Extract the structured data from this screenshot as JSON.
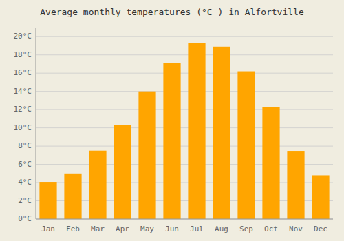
{
  "chart_data": {
    "type": "bar",
    "title": "Average monthly temperatures (°C ) in Alfortville",
    "categories": [
      "Jan",
      "Feb",
      "Mar",
      "Apr",
      "May",
      "Jun",
      "Jul",
      "Aug",
      "Sep",
      "Oct",
      "Nov",
      "Dec"
    ],
    "values": [
      4.0,
      5.0,
      7.5,
      10.3,
      14.0,
      17.1,
      19.3,
      18.9,
      16.2,
      12.3,
      7.4,
      4.8
    ],
    "color": "#FFA500",
    "ylim": [
      0,
      21
    ],
    "yticks": [
      {
        "value": 0,
        "label": "0°C"
      },
      {
        "value": 2,
        "label": "2°C"
      },
      {
        "value": 4,
        "label": "4°C"
      },
      {
        "value": 6,
        "label": "6°C"
      },
      {
        "value": 8,
        "label": "8°C"
      },
      {
        "value": 10,
        "label": "10°C"
      },
      {
        "value": 12,
        "label": "12°C"
      },
      {
        "value": 14,
        "label": "14°C"
      },
      {
        "value": 16,
        "label": "16°C"
      },
      {
        "value": 18,
        "label": "18°C"
      },
      {
        "value": 20,
        "label": "20°C"
      }
    ],
    "grid": true
  }
}
